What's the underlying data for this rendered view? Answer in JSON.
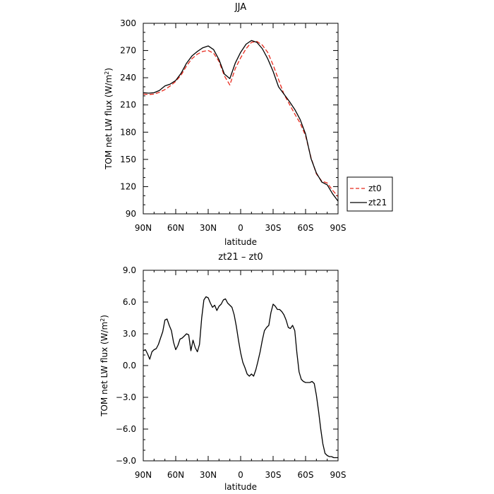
{
  "chart_data": [
    {
      "type": "line",
      "title": "JJA",
      "xlabel": "latitude",
      "ylabel": "TOM net LW flux (W/m²)",
      "ylabel_parts": [
        "TOM net LW flux (W/m",
        "2",
        ")"
      ],
      "xlim": [
        90,
        -90
      ],
      "ylim": [
        90,
        300
      ],
      "xticks": [
        90,
        60,
        30,
        0,
        -30,
        -60,
        -90
      ],
      "xtick_labels": [
        "90N",
        "60N",
        "30N",
        "0",
        "30S",
        "60S",
        "90S"
      ],
      "yticks": [
        90,
        120,
        150,
        180,
        210,
        240,
        270,
        300
      ],
      "ytick_labels": [
        "90",
        "120",
        "150",
        "180",
        "210",
        "240",
        "270",
        "300"
      ],
      "legend": "right",
      "series": [
        {
          "name": "zt0",
          "color": "#e8291c",
          "dash": "dashed",
          "x": [
            90,
            85,
            80,
            75,
            70,
            65,
            60,
            55,
            50,
            45,
            40,
            35,
            30,
            25,
            20,
            15,
            10,
            5,
            0,
            -5,
            -10,
            -15,
            -20,
            -25,
            -30,
            -35,
            -40,
            -45,
            -50,
            -55,
            -60,
            -65,
            -70,
            -75,
            -80,
            -85,
            -90
          ],
          "values": [
            222,
            221.5,
            222,
            224,
            227,
            231,
            236,
            243,
            253,
            261,
            266,
            269,
            270,
            267,
            258,
            242,
            232,
            250,
            262,
            272,
            279,
            280,
            276,
            268,
            254,
            238,
            222,
            211,
            200,
            190,
            176,
            152,
            134,
            126,
            124,
            116,
            109
          ]
        },
        {
          "name": "zt21",
          "color": "#000000",
          "dash": "solid",
          "x": [
            90,
            85,
            80,
            75,
            70,
            65,
            60,
            55,
            50,
            45,
            40,
            35,
            30,
            25,
            20,
            15,
            10,
            5,
            0,
            -5,
            -10,
            -15,
            -20,
            -25,
            -30,
            -35,
            -40,
            -45,
            -50,
            -55,
            -60,
            -65,
            -70,
            -75,
            -80,
            -85,
            -90
          ],
          "values": [
            223.5,
            223,
            223.5,
            226,
            231,
            233,
            237,
            245,
            256,
            264,
            269,
            273,
            275,
            271,
            260,
            244,
            239,
            256,
            268,
            277,
            281,
            279,
            272,
            261,
            247,
            230,
            222,
            214,
            205,
            194,
            178,
            151,
            135,
            125,
            122,
            112,
            104
          ]
        }
      ]
    },
    {
      "type": "line",
      "title": "zt21 – zt0",
      "xlabel": "latitude",
      "ylabel": "TOM net LW flux (W/m²)",
      "ylabel_parts": [
        "TOM net LW flux (W/m",
        "2",
        ")"
      ],
      "xlim": [
        90,
        -90
      ],
      "ylim": [
        -9,
        9
      ],
      "xticks": [
        90,
        60,
        30,
        0,
        -30,
        -60,
        -90
      ],
      "xtick_labels": [
        "90N",
        "60N",
        "30N",
        "0",
        "30S",
        "60S",
        "90S"
      ],
      "yticks": [
        -9,
        -6,
        -3,
        0,
        3,
        6,
        9
      ],
      "ytick_labels": [
        "−9.0",
        "−6.0",
        "−3.0",
        "0.0",
        "3.0",
        "6.0",
        "9.0"
      ],
      "series": [
        {
          "color": "#000000",
          "dash": "solid",
          "x": [
            90,
            88,
            86,
            84,
            82,
            80,
            78,
            76,
            74,
            72,
            70,
            68,
            66,
            64,
            62,
            60,
            58,
            56,
            54,
            52,
            50,
            48,
            46,
            44,
            42,
            40,
            38,
            36,
            34,
            32,
            30,
            28,
            26,
            24,
            22,
            20,
            18,
            16,
            14,
            12,
            10,
            8,
            6,
            4,
            2,
            0,
            -2,
            -4,
            -6,
            -8,
            -10,
            -12,
            -14,
            -16,
            -18,
            -20,
            -22,
            -24,
            -26,
            -28,
            -30,
            -32,
            -34,
            -36,
            -38,
            -40,
            -42,
            -44,
            -46,
            -48,
            -50,
            -52,
            -54,
            -56,
            -58,
            -60,
            -62,
            -64,
            -66,
            -68,
            -70,
            -72,
            -74,
            -76,
            -78,
            -80,
            -82,
            -84,
            -86,
            -88,
            -90
          ],
          "values": [
            1.4,
            1.5,
            1.1,
            0.6,
            1.3,
            1.5,
            1.6,
            2.0,
            2.6,
            3.2,
            4.3,
            4.4,
            3.8,
            3.3,
            2.2,
            1.5,
            1.9,
            2.5,
            2.6,
            2.8,
            3.0,
            2.9,
            1.4,
            2.4,
            1.7,
            1.3,
            2.0,
            4.5,
            6.2,
            6.5,
            6.4,
            5.9,
            5.5,
            5.7,
            5.2,
            5.6,
            5.8,
            6.2,
            6.3,
            5.9,
            5.7,
            5.5,
            4.8,
            3.7,
            2.4,
            1.2,
            0.3,
            -0.2,
            -0.8,
            -1.0,
            -0.8,
            -1.0,
            -0.4,
            0.4,
            1.3,
            2.4,
            3.3,
            3.6,
            3.8,
            5.0,
            5.8,
            5.6,
            5.3,
            5.3,
            5.1,
            4.8,
            4.3,
            3.6,
            3.5,
            3.8,
            3.3,
            1.2,
            -0.6,
            -1.3,
            -1.5,
            -1.6,
            -1.6,
            -1.6,
            -1.5,
            -1.7,
            -2.8,
            -4.3,
            -6.0,
            -7.4,
            -8.3,
            -8.5,
            -8.6,
            -8.6,
            -8.7,
            -8.7,
            -8.7
          ]
        }
      ]
    }
  ]
}
